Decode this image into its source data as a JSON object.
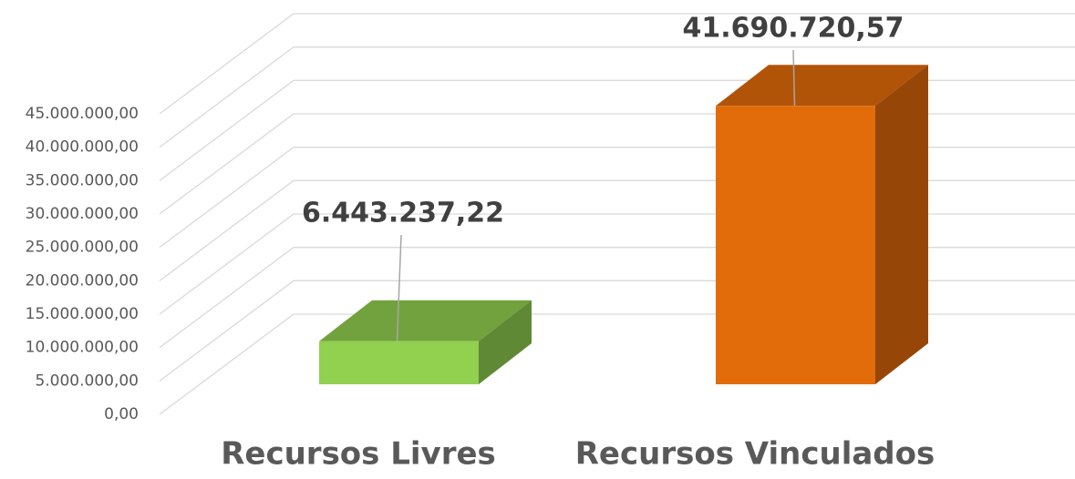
{
  "chart_data": {
    "type": "bar3d",
    "categories": [
      "Recursos Livres",
      "Recursos Vinculados"
    ],
    "values": [
      6443237.22,
      41690720.57
    ],
    "value_labels": [
      "6.443.237,22",
      "41.690.720,57"
    ],
    "colors": [
      "#92d050",
      "#e36c0a"
    ],
    "ylim": [
      0,
      45000000
    ],
    "yticks": [
      {
        "value": 0,
        "label": "0,00"
      },
      {
        "value": 5000000,
        "label": "5.000.000,00"
      },
      {
        "value": 10000000,
        "label": "10.000.000,00"
      },
      {
        "value": 15000000,
        "label": "15.000.000,00"
      },
      {
        "value": 20000000,
        "label": "20.000.000,00"
      },
      {
        "value": 25000000,
        "label": "25.000.000,00"
      },
      {
        "value": 30000000,
        "label": "30.000.000,00"
      },
      {
        "value": 35000000,
        "label": "35.000.000,00"
      },
      {
        "value": 40000000,
        "label": "40.000.000,00"
      },
      {
        "value": 45000000,
        "label": "45.000.000,00"
      }
    ],
    "grid": true
  }
}
